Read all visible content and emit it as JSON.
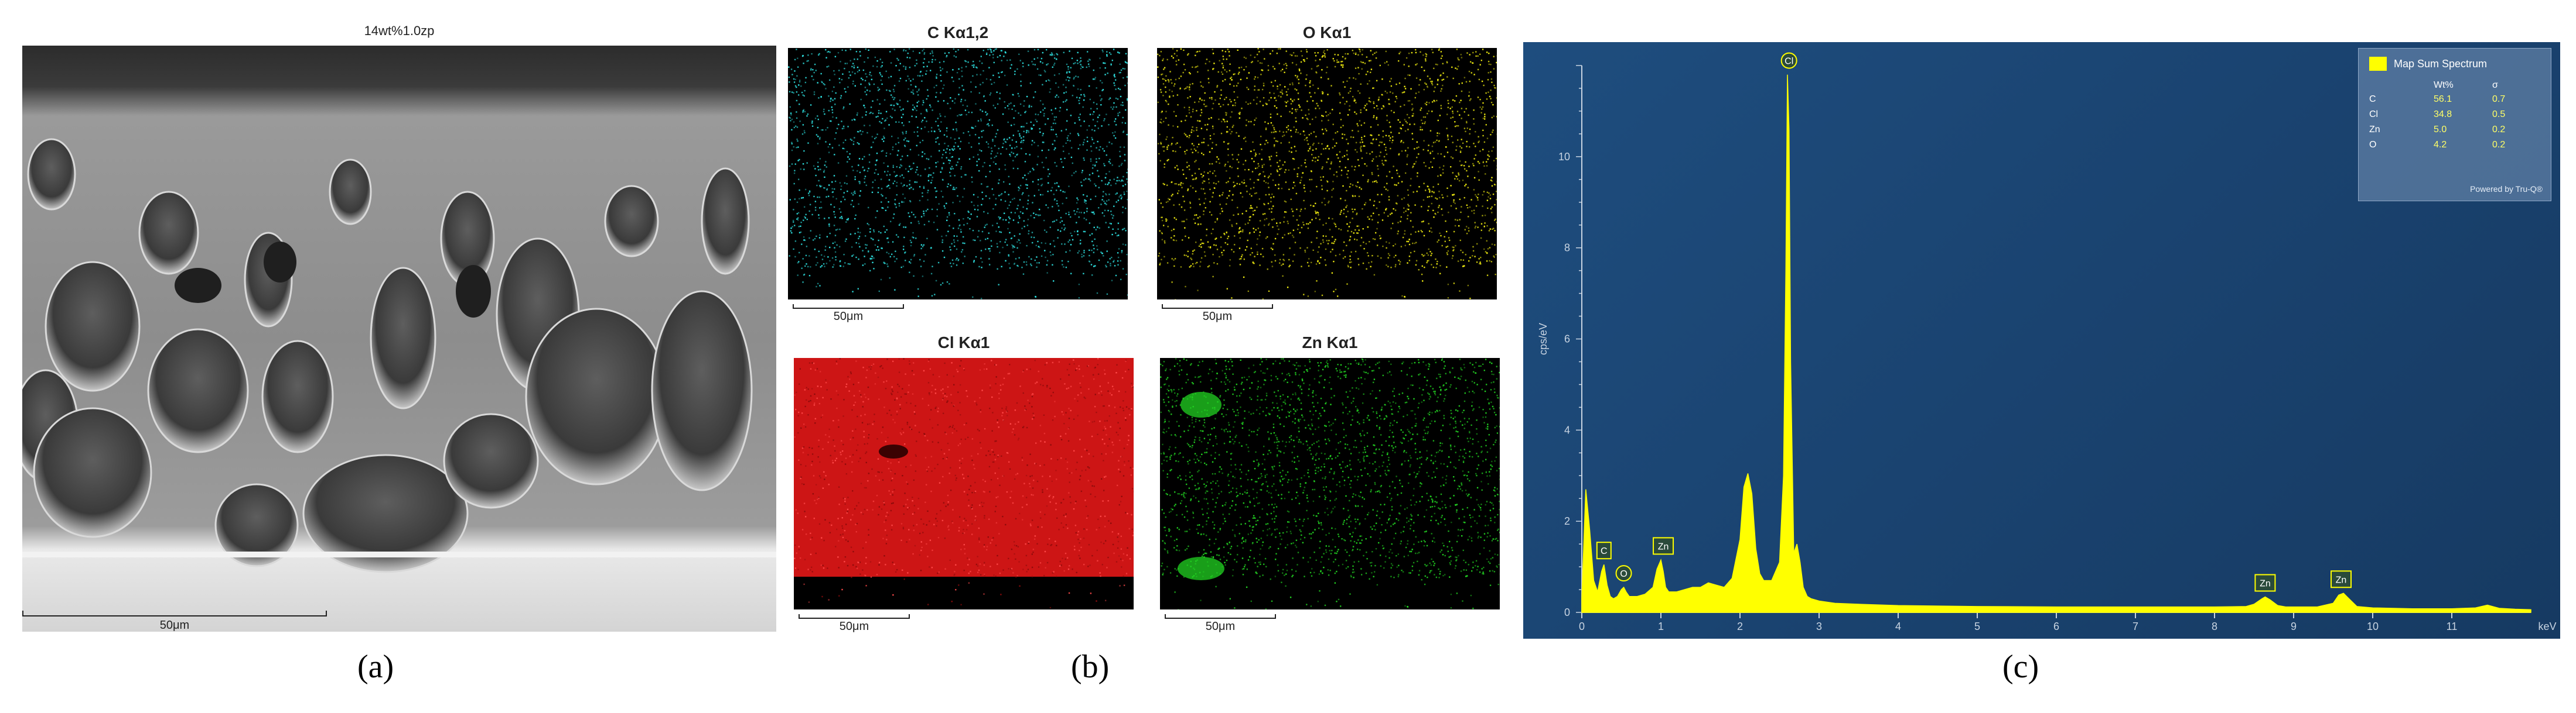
{
  "figure": {
    "panel_labels": {
      "a": "(a)",
      "b": "(b)",
      "c": "(c)"
    }
  },
  "sem": {
    "title": "14wt%1.0zp",
    "scale_bar": "50μm"
  },
  "eds_maps": [
    {
      "id": "c",
      "title": "C Kα1,2",
      "scale_bar": "50μm",
      "color": "#2ee3e3"
    },
    {
      "id": "o",
      "title": "O Kα1",
      "scale_bar": "50μm",
      "color": "#f2ee10"
    },
    {
      "id": "cl",
      "title": "Cl Kα1",
      "scale_bar": "50μm",
      "color": "#ff1a1a"
    },
    {
      "id": "zn",
      "title": "Zn Kα1",
      "scale_bar": "50μm",
      "color": "#22d322"
    }
  ],
  "spectrum": {
    "legend": {
      "title": "Map Sum Spectrum",
      "col_headers": [
        "Wt%",
        "σ"
      ],
      "rows": [
        {
          "element": "C",
          "wt": "56.1",
          "sigma": "0.7"
        },
        {
          "element": "Cl",
          "wt": "34.8",
          "sigma": "0.5"
        },
        {
          "element": "Zn",
          "wt": "5.0",
          "sigma": "0.2"
        },
        {
          "element": "O",
          "wt": "4.2",
          "sigma": "0.2"
        }
      ],
      "powered_by": "Powered by Tru-Q®"
    },
    "background_color": "#1b4572",
    "fill_color": "#ffff00"
  },
  "chart_data": {
    "type": "area",
    "title": "",
    "xlabel": "keV",
    "ylabel": "cps/eV",
    "xlim": [
      0,
      12
    ],
    "ylim": [
      0,
      12
    ],
    "x_ticks": [
      0,
      1,
      2,
      3,
      4,
      5,
      6,
      7,
      8,
      9,
      10,
      11
    ],
    "y_ticks": [
      0,
      2,
      4,
      6,
      8,
      10
    ],
    "series": [
      {
        "name": "Map Sum Spectrum",
        "x": [
          0.0,
          0.05,
          0.1,
          0.15,
          0.2,
          0.25,
          0.28,
          0.32,
          0.36,
          0.4,
          0.45,
          0.5,
          0.53,
          0.56,
          0.6,
          0.7,
          0.8,
          0.9,
          0.95,
          1.0,
          1.03,
          1.06,
          1.1,
          1.2,
          1.3,
          1.4,
          1.5,
          1.6,
          1.7,
          1.8,
          1.9,
          2.0,
          2.05,
          2.1,
          2.15,
          2.2,
          2.25,
          2.3,
          2.4,
          2.5,
          2.55,
          2.58,
          2.6,
          2.62,
          2.64,
          2.68,
          2.72,
          2.76,
          2.8,
          2.85,
          2.9,
          3.0,
          3.2,
          3.5,
          4.0,
          5.0,
          6.0,
          7.0,
          8.0,
          8.4,
          8.5,
          8.6,
          8.64,
          8.7,
          8.8,
          8.9,
          9.0,
          9.3,
          9.5,
          9.57,
          9.63,
          9.7,
          9.8,
          10.0,
          10.5,
          11.0,
          11.3,
          11.45,
          11.6,
          11.8,
          12.0
        ],
        "y": [
          0.3,
          2.7,
          1.8,
          0.7,
          0.45,
          0.9,
          1.05,
          0.6,
          0.35,
          0.3,
          0.35,
          0.5,
          0.55,
          0.45,
          0.35,
          0.35,
          0.4,
          0.55,
          0.95,
          1.15,
          0.9,
          0.55,
          0.45,
          0.45,
          0.5,
          0.55,
          0.55,
          0.65,
          0.6,
          0.55,
          0.75,
          1.6,
          2.75,
          3.05,
          2.6,
          1.4,
          0.85,
          0.7,
          0.7,
          1.1,
          3.0,
          7.5,
          11.8,
          10.6,
          5.5,
          1.3,
          1.5,
          1.1,
          0.55,
          0.35,
          0.3,
          0.25,
          0.2,
          0.18,
          0.15,
          0.13,
          0.12,
          0.12,
          0.12,
          0.13,
          0.18,
          0.3,
          0.34,
          0.28,
          0.15,
          0.12,
          0.12,
          0.12,
          0.2,
          0.38,
          0.42,
          0.3,
          0.13,
          0.1,
          0.08,
          0.08,
          0.1,
          0.16,
          0.09,
          0.07,
          0.06
        ]
      }
    ],
    "annotations": [
      {
        "text": "Cl",
        "x": 2.62,
        "y": 11.8,
        "style": "circle"
      },
      {
        "text": "C",
        "x": 0.28,
        "y": 1.05,
        "style": "box"
      },
      {
        "text": "O",
        "x": 0.53,
        "y": 0.55,
        "style": "circle"
      },
      {
        "text": "Zn",
        "x": 1.03,
        "y": 1.15,
        "style": "box"
      },
      {
        "text": "Zn",
        "x": 8.64,
        "y": 0.34,
        "style": "box"
      },
      {
        "text": "Zn",
        "x": 9.6,
        "y": 0.42,
        "style": "box"
      }
    ]
  }
}
